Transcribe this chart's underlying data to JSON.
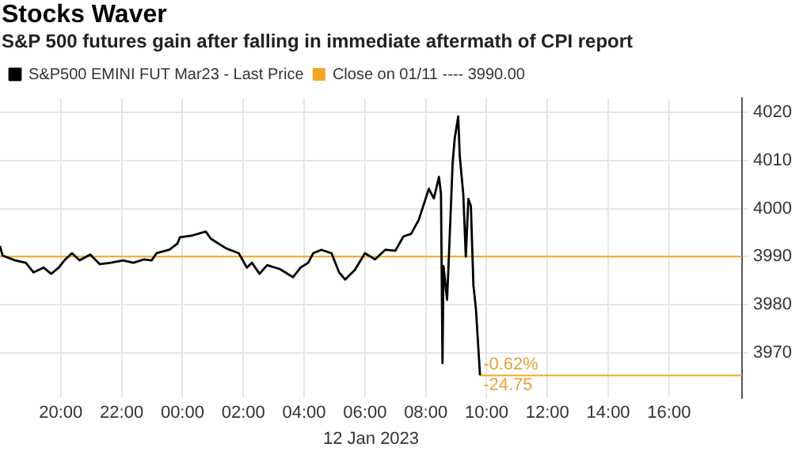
{
  "chart_data": {
    "type": "line",
    "title": "Stocks Waver",
    "subtitle": "S&P 500 futures gain after falling in immediate aftermath of CPI report",
    "xlabel": "12 Jan 2023",
    "xlim": [
      "2023-01-11T18:00",
      "2023-01-12T18:24"
    ],
    "ylim": [
      3960.5,
      4023
    ],
    "xticks": [
      {
        "value": "2023-01-11T20:00",
        "label": "20:00"
      },
      {
        "value": "2023-01-11T22:00",
        "label": "22:00"
      },
      {
        "value": "2023-01-12T00:00",
        "label": "00:00"
      },
      {
        "value": "2023-01-12T02:00",
        "label": "02:00"
      },
      {
        "value": "2023-01-12T04:00",
        "label": "04:00"
      },
      {
        "value": "2023-01-12T06:00",
        "label": "06:00"
      },
      {
        "value": "2023-01-12T08:00",
        "label": "08:00"
      },
      {
        "value": "2023-01-12T10:00",
        "label": "10:00"
      },
      {
        "value": "2023-01-12T12:00",
        "label": "12:00"
      },
      {
        "value": "2023-01-12T14:00",
        "label": "14:00"
      },
      {
        "value": "2023-01-12T16:00",
        "label": "16:00"
      }
    ],
    "yticks": [
      3970,
      3980,
      3990,
      4000,
      4010,
      4020
    ],
    "grid": true,
    "legend": "top left",
    "marker": "none",
    "line_style": "solid",
    "series": [
      {
        "name": "S&P500 EMINI FUT Mar23 - Last Price",
        "color": "#000000",
        "x": [
          "2023-01-11T18:00",
          "2023-01-11T18:05",
          "2023-01-11T18:30",
          "2023-01-11T18:51",
          "2023-01-11T19:06",
          "2023-01-11T19:26",
          "2023-01-11T19:41",
          "2023-01-11T19:56",
          "2023-01-11T20:07",
          "2023-01-11T20:22",
          "2023-01-11T20:37",
          "2023-01-11T20:58",
          "2023-01-11T21:17",
          "2023-01-11T21:38",
          "2023-01-11T22:03",
          "2023-01-11T22:23",
          "2023-01-11T22:44",
          "2023-01-11T22:59",
          "2023-01-11T23:09",
          "2023-01-11T23:34",
          "2023-01-11T23:50",
          "2023-01-11T23:55",
          "2023-01-12T00:20",
          "2023-01-12T00:46",
          "2023-01-12T00:56",
          "2023-01-12T01:26",
          "2023-01-12T01:51",
          "2023-01-12T02:07",
          "2023-01-12T02:17",
          "2023-01-12T02:32",
          "2023-01-12T02:47",
          "2023-01-12T03:12",
          "2023-01-12T03:38",
          "2023-01-12T03:53",
          "2023-01-12T04:08",
          "2023-01-12T04:18",
          "2023-01-12T04:34",
          "2023-01-12T04:54",
          "2023-01-12T05:09",
          "2023-01-12T05:21",
          "2023-01-12T05:40",
          "2023-01-12T06:00",
          "2023-01-12T06:20",
          "2023-01-12T06:40",
          "2023-01-12T07:00",
          "2023-01-12T07:16",
          "2023-01-12T07:31",
          "2023-01-12T07:46",
          "2023-01-12T08:06",
          "2023-01-12T08:16",
          "2023-01-12T08:26",
          "2023-01-12T08:30",
          "2023-01-12T08:33",
          "2023-01-12T08:35",
          "2023-01-12T08:42",
          "2023-01-12T08:45",
          "2023-01-12T08:53",
          "2023-01-12T08:57",
          "2023-01-12T09:04",
          "2023-01-12T09:07",
          "2023-01-12T09:14",
          "2023-01-12T09:19",
          "2023-01-12T09:24",
          "2023-01-12T09:29",
          "2023-01-12T09:34",
          "2023-01-12T09:39",
          "2023-01-12T09:47"
        ],
        "values": [
          3992.2,
          3990.2,
          3989.2,
          3988.7,
          3986.7,
          3987.7,
          3986.4,
          3987.7,
          3989.2,
          3990.7,
          3989.2,
          3990.4,
          3988.4,
          3988.7,
          3989.2,
          3988.7,
          3989.4,
          3989.2,
          3990.7,
          3991.4,
          3992.7,
          3994.0,
          3994.4,
          3995.2,
          3993.7,
          3991.7,
          3990.7,
          3987.7,
          3988.7,
          3986.4,
          3988.2,
          3987.4,
          3985.7,
          3987.7,
          3988.7,
          3990.7,
          3991.4,
          3990.7,
          3986.7,
          3985.2,
          3987.2,
          3990.7,
          3989.4,
          3991.4,
          3991.2,
          3994.2,
          3994.7,
          3997.6,
          4004.1,
          4002.1,
          4006.6,
          4003.1,
          3967.8,
          3988,
          3981,
          3988.5,
          4009.5,
          4014.5,
          4019.2,
          4011,
          4003,
          3990,
          4002,
          4000.5,
          3984,
          3979,
          3965.25
        ]
      },
      {
        "name": "Close on 01/11 ---- 3990.00",
        "color": "#f5a623",
        "x": [
          "2023-01-11T18:00",
          "2023-01-12T18:24"
        ],
        "values": [
          3990,
          3990
        ]
      },
      {
        "color": "#f5a623",
        "x": [
          "2023-01-12T09:47",
          "2023-01-12T18:24"
        ],
        "values": [
          3965.25,
          3965.25
        ]
      }
    ],
    "annotations": [
      {
        "text": "-0.62%",
        "x": "2023-01-12T09:47",
        "y": 3965.25
      },
      {
        "text": "-24.75",
        "x": "2023-01-12T09:47",
        "y": 3965.25
      }
    ]
  }
}
